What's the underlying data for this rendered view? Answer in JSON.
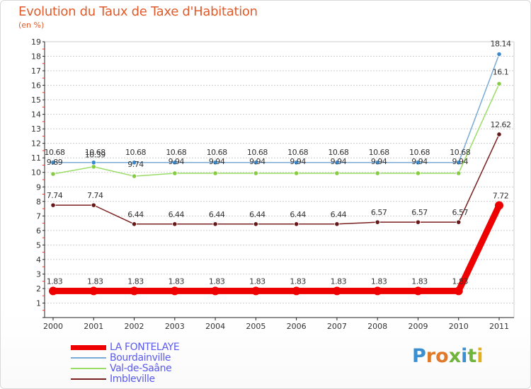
{
  "title": "Evolution du Taux de Taxe d'Habitation",
  "subtitle": "(en %)",
  "brand": "Proxiti",
  "chart_data": {
    "type": "line",
    "title": "Evolution du Taux de Taxe d'Habitation",
    "ylabel": "(en %)",
    "xlabel": "",
    "ylim": [
      0,
      19
    ],
    "yticks": [
      1,
      2,
      3,
      4,
      5,
      6,
      7,
      8,
      9,
      10,
      11,
      12,
      13,
      14,
      15,
      16,
      17,
      18,
      19
    ],
    "categories": [
      "2000",
      "2001",
      "2002",
      "2003",
      "2004",
      "2005",
      "2006",
      "2007",
      "2008",
      "2009",
      "2010",
      "2011"
    ],
    "series": [
      {
        "name": "LA FONTELAYE",
        "color": "#ee0000",
        "values": [
          1.83,
          1.83,
          1.83,
          1.83,
          1.83,
          1.83,
          1.83,
          1.83,
          1.83,
          1.83,
          1.83,
          7.72
        ],
        "labels": [
          "1.83",
          "1.83",
          "1.83",
          "1.83",
          "1.83",
          "1.83",
          "1.83",
          "1.83",
          "1.83",
          "1.83",
          "1.83",
          "7.72"
        ]
      },
      {
        "name": "Bourdainville",
        "color": "#7aaad8",
        "values": [
          10.68,
          10.68,
          10.68,
          10.68,
          10.68,
          10.68,
          10.68,
          10.68,
          10.68,
          10.68,
          10.68,
          18.14
        ],
        "labels": [
          "10.68",
          "10.68",
          "10.68",
          "10.68",
          "10.68",
          "10.68",
          "10.68",
          "10.68",
          "10.68",
          "10.68",
          "10.68",
          "18.14"
        ]
      },
      {
        "name": "Val-de-Saâne",
        "color": "#99dd66",
        "values": [
          9.89,
          10.39,
          9.74,
          9.94,
          9.94,
          9.94,
          9.94,
          9.94,
          9.94,
          9.94,
          9.94,
          16.1
        ],
        "labels": [
          "9.89",
          "10.39",
          "9.74",
          "9.94",
          "9.94",
          "9.94",
          "9.94",
          "9.94",
          "9.94",
          "9.94",
          "9.94",
          "16.1"
        ]
      },
      {
        "name": "Imbleville",
        "color": "#7a1f1f",
        "values": [
          7.74,
          7.74,
          6.44,
          6.44,
          6.44,
          6.44,
          6.44,
          6.44,
          6.57,
          6.57,
          6.57,
          12.62
        ],
        "labels": [
          "7.74",
          "7.74",
          "6.44",
          "6.44",
          "6.44",
          "6.44",
          "6.44",
          "6.44",
          "6.57",
          "6.57",
          "6.57",
          "12.62"
        ]
      }
    ]
  }
}
